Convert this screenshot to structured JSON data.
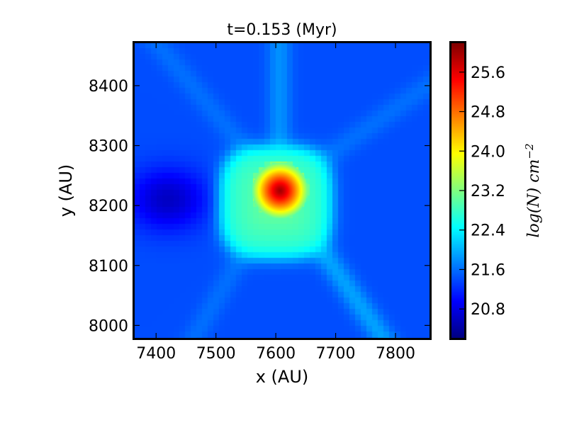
{
  "chart_data": {
    "type": "heatmap",
    "title": "t=0.153 (Myr)",
    "xlabel": "x (AU)",
    "ylabel": "y (AU)",
    "xlim": [
      7363,
      7858
    ],
    "ylim": [
      7978,
      8472
    ],
    "xticks": [
      7400,
      7500,
      7600,
      7700,
      7800
    ],
    "xtick_labels": [
      "7400",
      "7500",
      "7600",
      "7700",
      "7800"
    ],
    "yticks": [
      8000,
      8100,
      8200,
      8300,
      8400
    ],
    "ytick_labels": [
      "8000",
      "8100",
      "8200",
      "8300",
      "8400"
    ],
    "colorbar": {
      "label_base": "log(N) cm",
      "label_exp": "−2",
      "range": [
        20.2,
        26.2
      ],
      "ticks": [
        20.8,
        21.6,
        22.4,
        23.2,
        24.0,
        24.8,
        25.6
      ],
      "tick_labels": [
        "20.8",
        "21.6",
        "22.4",
        "23.2",
        "24.0",
        "24.8",
        "25.6"
      ],
      "colormap": "jet"
    },
    "features": {
      "core": {
        "x": 7606,
        "y": 8226,
        "peak": 26.0
      },
      "envelope": {
        "x": 7600,
        "y": 8205,
        "half_width_x": 95,
        "half_width_y": 95,
        "value": 22.6
      },
      "background": 21.4,
      "void_region": {
        "x": 7420,
        "y": 8210,
        "value": 20.6
      },
      "filaments": [
        {
          "angle_deg": -55,
          "value": 21.9
        },
        {
          "angle_deg": 90,
          "value": 21.8
        },
        {
          "angle_deg": 130,
          "value": 21.6
        },
        {
          "angle_deg": 35,
          "value": 21.6
        },
        {
          "angle_deg": -120,
          "value": 21.6
        }
      ]
    },
    "grid": false
  }
}
